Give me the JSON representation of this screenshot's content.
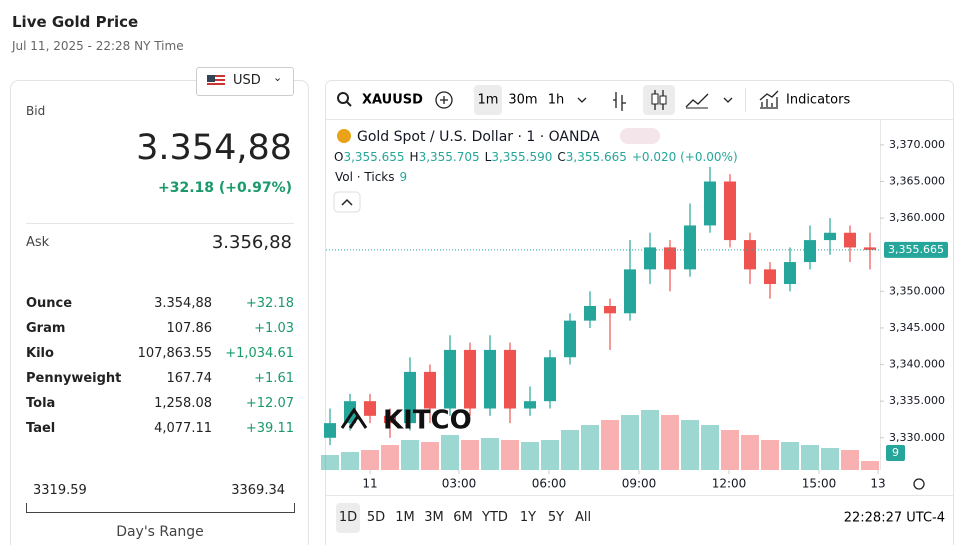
{
  "header": {
    "title": "Live Gold Price",
    "date": "Jul 11, 2025 - 22:28 NY Time"
  },
  "quote": {
    "currency": "USD",
    "bid_label": "Bid",
    "bid": "3.354,88",
    "change": "+32.18 (+0.97%)",
    "ask_label": "Ask",
    "ask": "3.356,88",
    "units": [
      {
        "name": "Ounce",
        "price": "3.354,88",
        "change": "+32.18"
      },
      {
        "name": "Gram",
        "price": "107.86",
        "change": "+1.03"
      },
      {
        "name": "Kilo",
        "price": "107,863.55",
        "change": "+1,034.61"
      },
      {
        "name": "Pennyweight",
        "price": "167.74",
        "change": "+1.61"
      },
      {
        "name": "Tola",
        "price": "1,258.08",
        "change": "+12.07"
      },
      {
        "name": "Tael",
        "price": "4,077.11",
        "change": "+39.11"
      }
    ],
    "range": {
      "low": "3319.59",
      "high": "3369.34",
      "label": "Day's Range"
    }
  },
  "toolbar": {
    "symbol": "XAUUSD",
    "intervals": [
      "1m",
      "30m",
      "1h"
    ],
    "indicators": "Indicators"
  },
  "chart_data": {
    "type": "candlestick",
    "title": "Gold Spot / U.S. Dollar · 1 · OANDA",
    "ohlc": [
      {
        "key": "O",
        "value": "3,355.655"
      },
      {
        "key": "H",
        "value": "3,355.705"
      },
      {
        "key": "L",
        "value": "3,355.590"
      },
      {
        "key": "C",
        "value": "3,355.665"
      }
    ],
    "ohlc_change": "+0.020 (+0.00%)",
    "volume_label": "Vol · Ticks",
    "watermark": "KITCO",
    "up_color": "#26a69a",
    "down_color": "#ef5350",
    "x": [
      -80,
      -40,
      0,
      40,
      80,
      120,
      160,
      200,
      240,
      280,
      320,
      360,
      400,
      440,
      480,
      520,
      560,
      600,
      640,
      680,
      720,
      760,
      800,
      840,
      880,
      920,
      960,
      1000
    ],
    "open": [
      3330,
      3332,
      3335,
      3333,
      3332,
      3339,
      3334,
      3342,
      3334,
      3342,
      3334,
      3335,
      3341,
      3346,
      3348,
      3347,
      3353,
      3356,
      3353,
      3359,
      3365,
      3357,
      3353,
      3351,
      3354,
      3357,
      3358,
      3356
    ],
    "high": [
      3334,
      3336,
      3336,
      3334,
      3341,
      3340,
      3344,
      3343,
      3344,
      3343,
      3337,
      3342,
      3347,
      3350,
      3349,
      3357,
      3358,
      3357,
      3362,
      3367,
      3366,
      3358,
      3354,
      3356,
      3359,
      3360,
      3359,
      3358
    ],
    "low": [
      3329,
      3331,
      3332,
      3330,
      3331,
      3332,
      3333,
      3333,
      3333,
      3332,
      3333,
      3334,
      3340,
      3345,
      3342,
      3346,
      3351,
      3350,
      3352,
      3358,
      3356,
      3351,
      3349,
      3350,
      3353,
      3355,
      3354,
      3353
    ],
    "close": [
      3332,
      3335,
      3333,
      3332,
      3339,
      3334,
      3342,
      3334,
      3342,
      3334,
      3335,
      3341,
      3346,
      3348,
      3347,
      3353,
      3356,
      3353,
      3359,
      3365,
      3357,
      3353,
      3351,
      3354,
      3357,
      3358,
      3356,
      3355.665
    ],
    "volume": [
      15,
      18,
      20,
      25,
      30,
      28,
      35,
      30,
      32,
      30,
      28,
      30,
      40,
      45,
      50,
      55,
      60,
      55,
      50,
      45,
      40,
      35,
      30,
      28,
      25,
      22,
      20,
      9
    ],
    "volume_lim": [
      0,
      100
    ],
    "last_price": {
      "value": 3355.665,
      "label": "3,355.665"
    },
    "xlim": [
      -88,
      1020
    ],
    "xticks": [
      {
        "value": 0,
        "label": "11"
      },
      {
        "value": 178,
        "label": "03:00"
      },
      {
        "value": 358,
        "label": "06:00"
      },
      {
        "value": 538,
        "label": "09:00"
      },
      {
        "value": 718,
        "label": "12:00"
      },
      {
        "value": 898,
        "label": "15:00"
      },
      {
        "value": 1016,
        "label": "13"
      }
    ],
    "ylim": [
      3325.6,
      3373.4
    ],
    "yticks": [
      {
        "value": 3330,
        "label": "3,330.000"
      },
      {
        "value": 3335,
        "label": "3,335.000"
      },
      {
        "value": 3340,
        "label": "3,340.000"
      },
      {
        "value": 3345,
        "label": "3,345.000"
      },
      {
        "value": 3350,
        "label": "3,350.000"
      },
      {
        "value": 3360,
        "label": "3,360.000"
      },
      {
        "value": 3365,
        "label": "3,365.000"
      },
      {
        "value": 3370,
        "label": "3,370.000"
      }
    ]
  },
  "footer": {
    "ranges": [
      "1D",
      "5D",
      "1M",
      "3M",
      "6M",
      "YTD",
      "1Y",
      "5Y",
      "All"
    ],
    "clock": "22:28:27 UTC-4"
  }
}
